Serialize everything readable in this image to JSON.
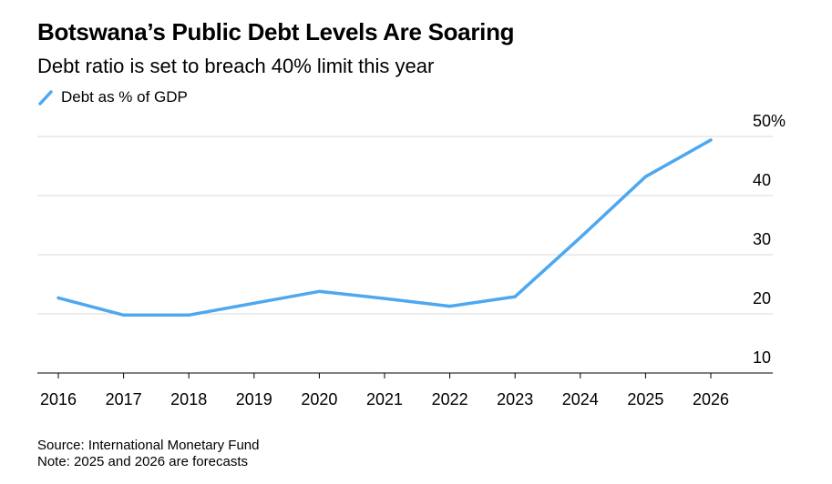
{
  "chart_data": {
    "type": "line",
    "title": "Botswana’s Public Debt Levels Are Soaring",
    "subtitle": "Debt ratio is set to breach 40% limit this year",
    "categories": [
      "2016",
      "2017",
      "2018",
      "2019",
      "2020",
      "2021",
      "2022",
      "2023",
      "2024",
      "2025",
      "2026"
    ],
    "series": [
      {
        "name": "Debt as % of GDP",
        "color": "#4DA8F0",
        "values": [
          22.7,
          19.8,
          19.8,
          21.8,
          23.8,
          22.6,
          21.3,
          22.9,
          32.9,
          43.2,
          49.4
        ]
      }
    ],
    "y_ticks": [
      10,
      20,
      30,
      40,
      50
    ],
    "y_tick_labels": [
      "10",
      "20",
      "30",
      "40",
      "50%"
    ],
    "ylim": [
      10,
      50
    ],
    "xlabel": "",
    "ylabel": "",
    "grid": true,
    "y_axis_side": "right",
    "legend_position": "top-left"
  },
  "footer": {
    "source": "Source: International Monetary Fund",
    "note": "Note: 2025 and 2026 are forecasts"
  }
}
